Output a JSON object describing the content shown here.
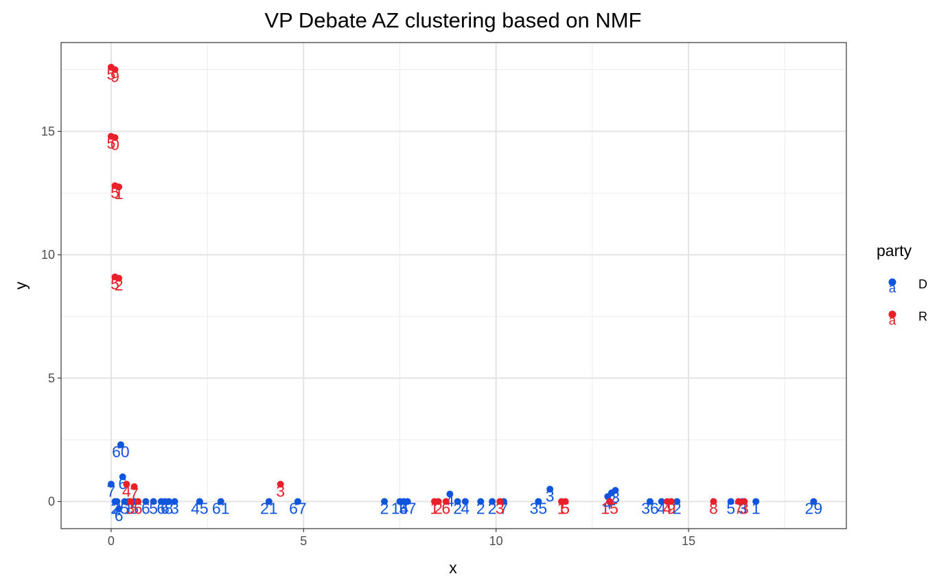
{
  "chart_data": {
    "type": "scatter",
    "title": "VP Debate AZ clustering based on NMF",
    "xlabel": "x",
    "ylabel": "y",
    "xlim": [
      -1.3,
      19.1
    ],
    "ylim": [
      -1.1,
      18.6
    ],
    "x_ticks": [
      0,
      5,
      10,
      15
    ],
    "y_ticks": [
      0,
      5,
      10,
      15
    ],
    "x_tick_labels": [
      "0",
      "5",
      "10",
      "15"
    ],
    "y_tick_labels": [
      "0",
      "5",
      "10",
      "15"
    ],
    "grid": true,
    "legend": {
      "title": "party",
      "position": "right",
      "glyph": "a",
      "entries": [
        {
          "key": "D",
          "label": "D",
          "color": "#1155dd"
        },
        {
          "key": "R",
          "label": "R",
          "color": "#e8202a"
        }
      ]
    },
    "series": [
      {
        "name": "D",
        "color": "#1155dd",
        "points": [
          {
            "x": 0.0,
            "y": 0.7,
            "label": "7"
          },
          {
            "x": 0.1,
            "y": 0.0,
            "label": "2"
          },
          {
            "x": 0.15,
            "y": 0.0,
            "label": "2"
          },
          {
            "x": 0.2,
            "y": -0.3,
            "label": "6"
          },
          {
            "x": 0.25,
            "y": 2.3,
            "label": "60"
          },
          {
            "x": 0.3,
            "y": 1.0,
            "label": "6"
          },
          {
            "x": 0.35,
            "y": 0.0,
            "label": "5"
          },
          {
            "x": 0.45,
            "y": 0.0,
            "label": "1"
          },
          {
            "x": 0.6,
            "y": 0.0,
            "label": "5"
          },
          {
            "x": 0.9,
            "y": 0.0,
            "label": "6"
          },
          {
            "x": 1.1,
            "y": 0.0,
            "label": "5"
          },
          {
            "x": 1.3,
            "y": 0.0,
            "label": "6"
          },
          {
            "x": 1.4,
            "y": 0.0,
            "label": "6"
          },
          {
            "x": 1.5,
            "y": 0.0,
            "label": "8"
          },
          {
            "x": 1.65,
            "y": 0.0,
            "label": "3"
          },
          {
            "x": 2.3,
            "y": 0.0,
            "label": "45"
          },
          {
            "x": 2.85,
            "y": 0.0,
            "label": "61"
          },
          {
            "x": 4.1,
            "y": 0.0,
            "label": "21"
          },
          {
            "x": 4.85,
            "y": 0.0,
            "label": "67"
          },
          {
            "x": 7.1,
            "y": 0.0,
            "label": "2"
          },
          {
            "x": 7.5,
            "y": 0.0,
            "label": "14"
          },
          {
            "x": 7.6,
            "y": 0.0,
            "label": "6"
          },
          {
            "x": 7.7,
            "y": 0.0,
            "label": "37"
          },
          {
            "x": 8.8,
            "y": 0.3,
            "label": "4"
          },
          {
            "x": 9.0,
            "y": 0.0,
            "label": "2"
          },
          {
            "x": 9.2,
            "y": 0.0,
            "label": "4"
          },
          {
            "x": 9.6,
            "y": 0.0,
            "label": "2"
          },
          {
            "x": 9.9,
            "y": 0.0,
            "label": "2"
          },
          {
            "x": 10.2,
            "y": 0.0,
            "label": "7"
          },
          {
            "x": 11.1,
            "y": 0.0,
            "label": "35"
          },
          {
            "x": 11.4,
            "y": 0.5,
            "label": "3"
          },
          {
            "x": 12.9,
            "y": 0.2,
            "label": "4"
          },
          {
            "x": 13.0,
            "y": 0.35,
            "label": "2"
          },
          {
            "x": 13.1,
            "y": 0.45,
            "label": "3"
          },
          {
            "x": 14.0,
            "y": 0.0,
            "label": "36"
          },
          {
            "x": 14.3,
            "y": 0.0,
            "label": "4"
          },
          {
            "x": 14.7,
            "y": 0.0,
            "label": "2"
          },
          {
            "x": 16.1,
            "y": 0.0,
            "label": "5"
          },
          {
            "x": 16.4,
            "y": 0.0,
            "label": "3"
          },
          {
            "x": 16.75,
            "y": 0.0,
            "label": "1"
          },
          {
            "x": 18.25,
            "y": 0.0,
            "label": "29"
          }
        ]
      },
      {
        "name": "R",
        "color": "#e8202a",
        "points": [
          {
            "x": 0.0,
            "y": 17.6,
            "label": "5"
          },
          {
            "x": 0.1,
            "y": 17.5,
            "label": "9"
          },
          {
            "x": 0.0,
            "y": 14.8,
            "label": "5"
          },
          {
            "x": 0.1,
            "y": 14.75,
            "label": "0"
          },
          {
            "x": 0.1,
            "y": 12.8,
            "label": "5"
          },
          {
            "x": 0.2,
            "y": 12.75,
            "label": "1"
          },
          {
            "x": 0.1,
            "y": 9.1,
            "label": "5"
          },
          {
            "x": 0.2,
            "y": 9.05,
            "label": "2"
          },
          {
            "x": 0.4,
            "y": 0.7,
            "label": "4"
          },
          {
            "x": 0.6,
            "y": 0.6,
            "label": "7"
          },
          {
            "x": 0.5,
            "y": 0.0,
            "label": "3"
          },
          {
            "x": 0.7,
            "y": 0.0,
            "label": "6"
          },
          {
            "x": 4.4,
            "y": 0.7,
            "label": "3"
          },
          {
            "x": 8.4,
            "y": 0.0,
            "label": "1"
          },
          {
            "x": 8.5,
            "y": 0.0,
            "label": "2"
          },
          {
            "x": 8.7,
            "y": 0.0,
            "label": "6"
          },
          {
            "x": 10.1,
            "y": 0.0,
            "label": "3"
          },
          {
            "x": 11.7,
            "y": 0.0,
            "label": "1"
          },
          {
            "x": 11.8,
            "y": 0.0,
            "label": "5"
          },
          {
            "x": 12.95,
            "y": 0.0,
            "label": "15"
          },
          {
            "x": 14.45,
            "y": 0.0,
            "label": "4"
          },
          {
            "x": 14.55,
            "y": 0.0,
            "label": "9"
          },
          {
            "x": 15.65,
            "y": 0.0,
            "label": "8"
          },
          {
            "x": 16.3,
            "y": 0.0,
            "label": "7"
          },
          {
            "x": 16.45,
            "y": 0.0,
            "label": "3"
          }
        ]
      }
    ]
  }
}
